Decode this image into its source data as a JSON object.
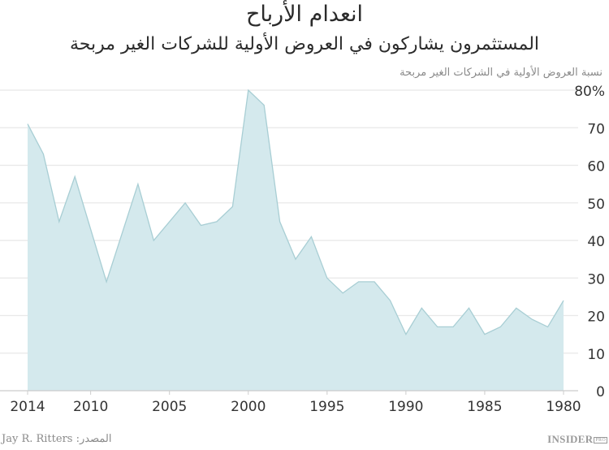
{
  "header": {
    "title": "انعدام الأرباح",
    "subtitle": "المستثمرون يشاركون في العروض الأولية للشركات الغير مربحة",
    "ylabel": "نسبة العروض الأولية في الشركات الغير مربحة"
  },
  "footer": {
    "source": "Jay R. Ritters :المصدر",
    "logo": "INSIDER",
    "logo_badge": "PRO"
  },
  "colors": {
    "fill": "#d4e9ed",
    "stroke": "#a8ced4",
    "grid": "#e8e8e8",
    "axis": "#cccccc",
    "text": "#333333"
  },
  "chart_data": {
    "type": "area",
    "title": "انعدام الأرباح",
    "subtitle": "المستثمرون يشاركون في العروض الأولية للشركات الغير مربحة",
    "xlabel": "",
    "ylabel": "نسبة العروض الأولية في الشركات الغير مربحة",
    "x_reversed": true,
    "y_axis_position": "right",
    "ylim": [
      0,
      80
    ],
    "yticks": [
      0,
      10,
      20,
      30,
      40,
      50,
      60,
      70,
      80
    ],
    "ytick_labels": [
      "0",
      "10",
      "20",
      "30",
      "40",
      "50",
      "60",
      "70",
      "80%"
    ],
    "xticks": [
      2014,
      2010,
      2005,
      2000,
      1995,
      1990,
      1985,
      1980
    ],
    "grid": true,
    "x": [
      2014,
      2013,
      2012,
      2011,
      2010,
      2009,
      2008,
      2007,
      2006,
      2005,
      2004,
      2003,
      2002,
      2001,
      2000,
      1999,
      1998,
      1997,
      1996,
      1995,
      1994,
      1993,
      1992,
      1991,
      1990,
      1989,
      1988,
      1987,
      1986,
      1985,
      1984,
      1983,
      1982,
      1981,
      1980
    ],
    "series": [
      {
        "name": "نسبة العروض الأولية في الشركات الغير مربحة",
        "values": [
          71,
          63,
          45,
          57,
          43,
          29,
          42,
          55,
          40,
          45,
          50,
          44,
          45,
          49,
          80,
          76,
          45,
          35,
          41,
          30,
          26,
          29,
          29,
          24,
          15,
          22,
          17,
          17,
          22,
          15,
          17,
          22,
          19,
          17,
          24
        ]
      }
    ],
    "source": "Jay R. Ritters"
  }
}
